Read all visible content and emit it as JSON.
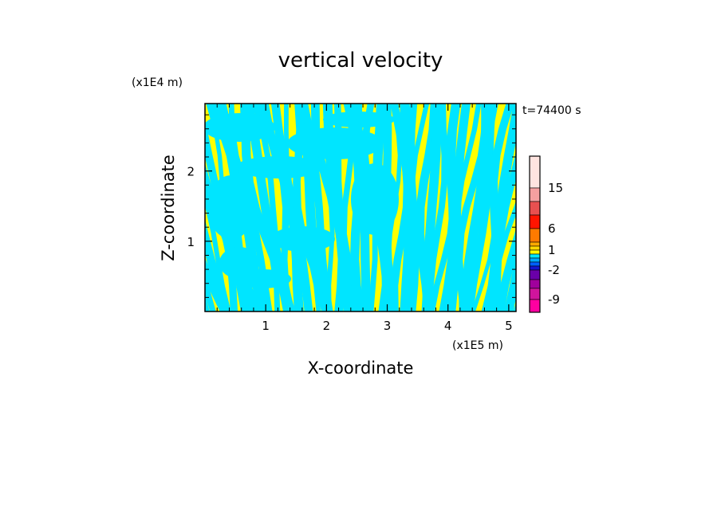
{
  "chart_data": {
    "type": "heatmap",
    "title": "vertical velocity",
    "xlabel": "X-coordinate",
    "ylabel": "Z-coordinate",
    "x_unit": "(x1E5 m)",
    "y_unit": "(x1E4 m)",
    "time_label": "t=74400 s",
    "xlim": [
      0,
      5.12
    ],
    "ylim": [
      0,
      2.96
    ],
    "x_ticks": [
      1,
      2,
      3,
      4,
      5
    ],
    "x_tick_labels": [
      "1",
      "2",
      "3",
      "4",
      "5"
    ],
    "y_ticks": [
      1,
      2
    ],
    "y_tick_labels": [
      "1",
      "2"
    ],
    "dominant_colors": {
      "positive": "#ffff00",
      "negative": "#00e5ff"
    },
    "colorbar": {
      "levels": [
        -12,
        -9,
        -6,
        -4,
        -2,
        -1,
        -0.5,
        0,
        0.5,
        1,
        2,
        4,
        6,
        9,
        12,
        15,
        20
      ],
      "colors": [
        "#ff00a0",
        "#d0149c",
        "#a0009c",
        "#6a00a8",
        "#1414d0",
        "#0060ff",
        "#00aaff",
        "#00e5ff",
        "#ffff00",
        "#ffd700",
        "#ffaa00",
        "#ff7a00",
        "#ff1400",
        "#e85050",
        "#f5a0a0",
        "#ffe4e0"
      ],
      "tick_labels": [
        "15",
        "6",
        "1",
        "-2",
        "-9"
      ],
      "tick_values": [
        15,
        6,
        1,
        -2,
        -9
      ]
    }
  }
}
